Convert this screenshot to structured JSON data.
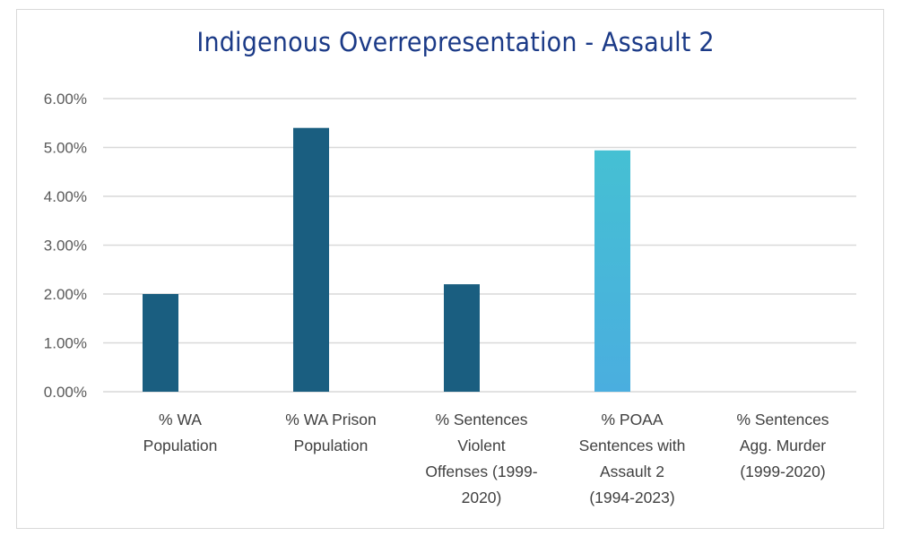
{
  "chart_data": {
    "type": "bar",
    "title": "Indigenous Overrepresentation - Assault 2",
    "xlabel": "",
    "ylabel": "",
    "ylim": [
      0,
      0.06
    ],
    "yticks": [
      "0.00%",
      "1.00%",
      "2.00%",
      "3.00%",
      "4.00%",
      "5.00%",
      "6.00%"
    ],
    "grid": true,
    "categories": [
      [
        "% WA",
        "Population"
      ],
      [
        "% WA Prison",
        "Population"
      ],
      [
        "% Sentences",
        "Violent",
        "Offenses (1999-",
        "2020)"
      ],
      [
        "% POAA",
        "Sentences with",
        "Assault 2",
        "(1994-2023)"
      ],
      [
        "% Sentences",
        "Agg. Murder",
        "(1999-2020)"
      ]
    ],
    "values": [
      0.02,
      0.054,
      0.022,
      0.0494,
      0.0
    ],
    "colors": [
      "#1a5e80",
      "#1a5e80",
      "#1a5e80",
      "gradient",
      "#1a5e80"
    ],
    "gradient_colors": [
      "#45c0d3",
      "#4aaedf"
    ]
  }
}
